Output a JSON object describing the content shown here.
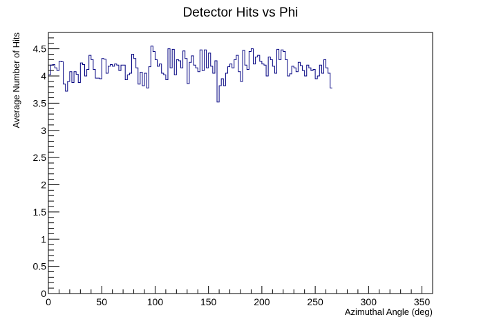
{
  "chart_data": {
    "type": "line",
    "title": "Detector Hits vs Phi",
    "xlabel": "Azimuthal Angle (deg)",
    "ylabel": "Average Number of Hits",
    "xlim": [
      0,
      360
    ],
    "ylim": [
      0,
      4.8
    ],
    "bin_width": 2,
    "line_color": "#000080",
    "frame_color": "#000000",
    "grid": false,
    "x_ticks": [
      "0",
      "50",
      "100",
      "150",
      "200",
      "250",
      "300",
      "350"
    ],
    "y_ticks": [
      "0",
      "0.5",
      "1",
      "1.5",
      "2",
      "2.5",
      "3",
      "3.5",
      "4",
      "4.5"
    ],
    "series": [
      {
        "values": [
          4.02,
          4.2,
          4.21,
          4.15,
          4.1,
          4.27,
          4.26,
          3.85,
          3.72,
          3.9,
          4.08,
          3.88,
          4.08,
          4.03,
          3.88,
          4.24,
          4.21,
          4.0,
          4.12,
          4.38,
          4.3,
          4.12,
          3.96,
          3.96,
          3.95,
          4.32,
          4.31,
          4.05,
          4.18,
          4.21,
          4.18,
          4.22,
          4.2,
          4.1,
          4.2,
          4.2,
          3.93,
          4.02,
          4.05,
          4.4,
          4.32,
          4.15,
          3.85,
          4.07,
          3.82,
          4.05,
          3.78,
          4.17,
          4.55,
          4.45,
          4.3,
          4.18,
          4.22,
          4.05,
          4.02,
          3.93,
          4.5,
          4.15,
          4.49,
          4.02,
          4.3,
          4.28,
          4.15,
          4.46,
          4.32,
          3.86,
          4.25,
          4.37,
          4.2,
          4.15,
          4.08,
          4.48,
          4.1,
          4.48,
          4.15,
          4.42,
          4.18,
          4.05,
          4.28,
          3.52,
          3.82,
          3.95,
          3.82,
          4.05,
          4.17,
          4.22,
          4.15,
          4.3,
          4.38,
          4.08,
          3.9,
          4.47,
          4.2,
          4.12,
          4.45,
          4.5,
          4.22,
          4.35,
          4.38,
          4.27,
          4.22,
          4.2,
          4.0,
          4.35,
          4.3,
          4.18,
          4.05,
          4.49,
          4.3,
          4.48,
          4.45,
          4.3,
          4.0,
          4.04,
          4.18,
          4.15,
          4.08,
          4.25,
          4.19,
          4.1,
          4.0,
          4.2,
          4.15,
          4.1,
          4.12,
          3.95,
          4.0,
          4.2,
          4.05,
          4.3,
          4.15,
          4.05,
          3.78
        ]
      }
    ]
  }
}
